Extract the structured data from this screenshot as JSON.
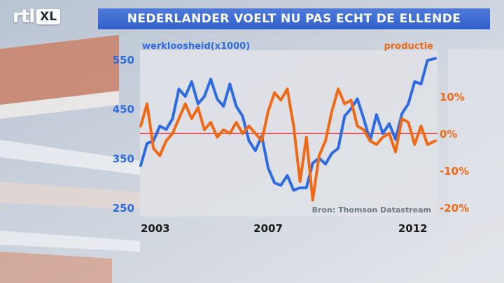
{
  "logo": {
    "text_left": "rtl",
    "text_right": "XL"
  },
  "title": "NEDERLANDER VOELT NU PAS ECHT DE ELLENDE",
  "chart_data": {
    "type": "line",
    "left_axis_label": "werkloosheid(x1000)",
    "right_axis_label": "productie",
    "source": "Bron: Thomson Datastream",
    "y_left": {
      "range": [
        250,
        550
      ],
      "ticks": [
        "550",
        "450",
        "350",
        "250"
      ],
      "tick_values": [
        550,
        450,
        350,
        250
      ]
    },
    "y_right": {
      "range": [
        -20,
        20
      ],
      "ticks": [
        "10%",
        "0%",
        "-10%",
        "-20%"
      ],
      "tick_values": [
        10,
        0,
        -10,
        -20
      ]
    },
    "x_ticks": [
      "2003",
      "2007",
      "2012"
    ],
    "x_tick_values": [
      2003.0,
      2007.0,
      2012.0
    ],
    "x_range": [
      2003.0,
      2012.25
    ],
    "zero_line": {
      "axis": "right",
      "value": 0
    },
    "colors": {
      "werkloosheid": "#2f6be0",
      "productie": "#ef6a17",
      "zero_line": "#e0303a",
      "left_ticks": "#2f6be0",
      "right_ticks": "#ef6a17"
    },
    "series": [
      {
        "name": "werkloosheid(x1000)",
        "axis": "left",
        "x": [
          2003.0,
          2003.2,
          2003.4,
          2003.6,
          2003.8,
          2004.0,
          2004.2,
          2004.4,
          2004.6,
          2004.8,
          2005.0,
          2005.2,
          2005.4,
          2005.6,
          2005.8,
          2006.0,
          2006.2,
          2006.4,
          2006.6,
          2006.8,
          2007.0,
          2007.2,
          2007.4,
          2007.6,
          2007.8,
          2008.0,
          2008.2,
          2008.4,
          2008.6,
          2008.8,
          2009.0,
          2009.2,
          2009.4,
          2009.6,
          2009.8,
          2010.0,
          2010.2,
          2010.4,
          2010.6,
          2010.8,
          2011.0,
          2011.2,
          2011.4,
          2011.6,
          2011.8,
          2012.0,
          2012.25
        ],
        "y": [
          335,
          380,
          385,
          415,
          408,
          430,
          490,
          475,
          505,
          460,
          475,
          510,
          470,
          455,
          500,
          455,
          435,
          385,
          365,
          395,
          330,
          300,
          295,
          315,
          285,
          290,
          290,
          340,
          350,
          338,
          360,
          370,
          435,
          450,
          470,
          430,
          385,
          438,
          400,
          420,
          388,
          440,
          460,
          505,
          500,
          548,
          552
        ]
      },
      {
        "name": "productie",
        "axis": "right",
        "x": [
          2003.0,
          2003.2,
          2003.4,
          2003.6,
          2003.8,
          2004.0,
          2004.2,
          2004.4,
          2004.6,
          2004.8,
          2005.0,
          2005.2,
          2005.4,
          2005.6,
          2005.8,
          2006.0,
          2006.2,
          2006.4,
          2006.6,
          2006.8,
          2007.0,
          2007.2,
          2007.4,
          2007.6,
          2007.8,
          2008.0,
          2008.2,
          2008.4,
          2008.6,
          2008.8,
          2009.0,
          2009.2,
          2009.4,
          2009.6,
          2009.8,
          2010.0,
          2010.2,
          2010.4,
          2010.6,
          2010.8,
          2011.0,
          2011.2,
          2011.4,
          2011.6,
          2011.8,
          2012.0,
          2012.25
        ],
        "y": [
          2,
          8,
          -4,
          -6,
          -2,
          0,
          4,
          8,
          4,
          7,
          1,
          3,
          -1,
          1,
          0,
          3,
          0,
          2,
          0,
          -2,
          6,
          11,
          9,
          12,
          2,
          -13,
          -1,
          -18,
          -6,
          -2,
          6,
          12,
          8,
          9,
          2,
          1,
          -2,
          -3,
          -1,
          0,
          -5,
          4,
          3,
          -3,
          2,
          -3,
          -2
        ]
      }
    ]
  }
}
